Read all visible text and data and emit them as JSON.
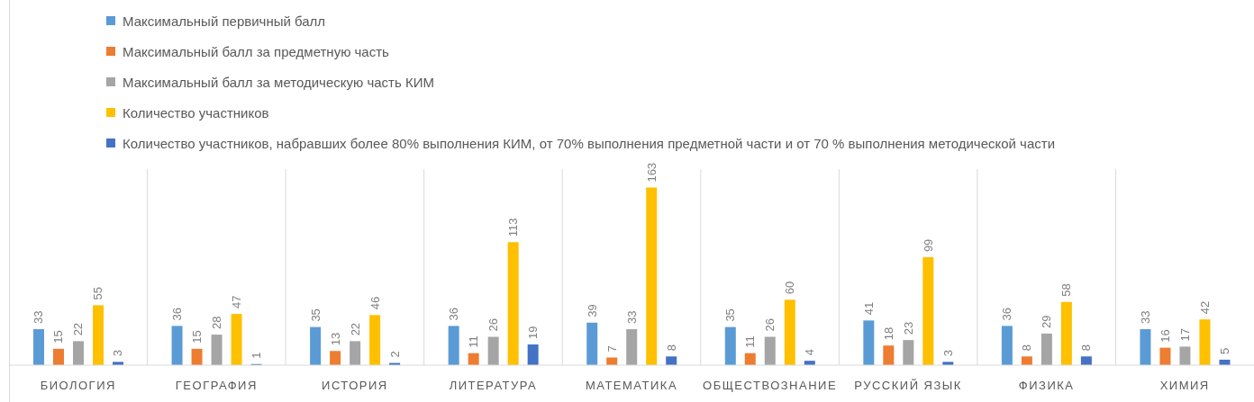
{
  "chart_data": {
    "type": "bar",
    "categories": [
      "БИОЛОГИЯ",
      "ГЕОГРАФИЯ",
      "ИСТОРИЯ",
      "ЛИТЕРАТУРА",
      "МАТЕМАТИКА",
      "ОБЩЕСТВОЗНАНИЕ",
      "РУССКИЙ ЯЗЫК",
      "ФИЗИКА",
      "ХИМИЯ"
    ],
    "series": [
      {
        "name": "Максимальный первичный балл",
        "color": "#5b9bd5",
        "values": [
          33,
          36,
          35,
          36,
          39,
          35,
          41,
          36,
          33
        ]
      },
      {
        "name": "Максимальный балл за предметную часть",
        "color": "#ed7d31",
        "values": [
          15,
          15,
          13,
          11,
          7,
          11,
          18,
          8,
          16
        ]
      },
      {
        "name": "Максимальный балл за методическую часть КИМ",
        "color": "#a5a5a5",
        "values": [
          22,
          28,
          22,
          26,
          33,
          26,
          23,
          29,
          17
        ]
      },
      {
        "name": "Количество участников",
        "color": "#ffc000",
        "values": [
          55,
          47,
          46,
          113,
          163,
          60,
          99,
          58,
          42
        ]
      },
      {
        "name": "Количество участников, набравших более 80% выполнения КИМ, от 70% выполнения предметной части и от 70 % выполнения методической части",
        "color": "#4472c4",
        "values": [
          3,
          1,
          2,
          19,
          8,
          4,
          3,
          8,
          5
        ]
      }
    ],
    "ylim": [
      0,
      180
    ],
    "tick_labels": "x",
    "grid": "x",
    "legend": "top",
    "data_labels": true
  }
}
